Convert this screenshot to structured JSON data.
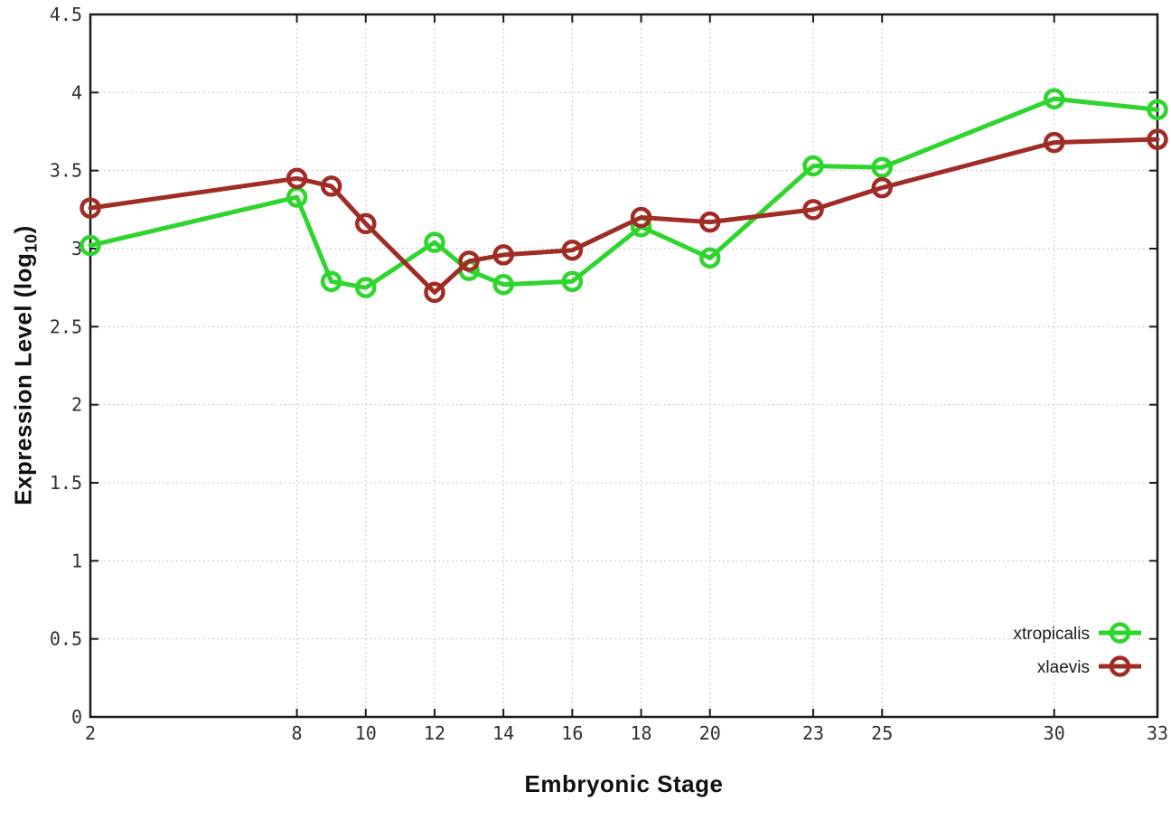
{
  "chart_data": {
    "type": "line",
    "title": "",
    "xlabel": "Embryonic Stage",
    "ylabel": "Expression Level (log10)",
    "ylabel_base": "Expression Level (log",
    "ylabel_sub": "10",
    "ylabel_close": ")",
    "x": [
      2,
      8,
      9,
      10,
      12,
      13,
      14,
      16,
      18,
      20,
      23,
      25,
      30,
      33
    ],
    "series": [
      {
        "name": "xtropicalis",
        "color": "#2dd52d",
        "marker": "open-circle",
        "values": [
          3.02,
          3.33,
          2.79,
          2.75,
          3.04,
          2.86,
          2.77,
          2.79,
          3.14,
          2.94,
          3.53,
          3.52,
          3.96,
          3.89
        ]
      },
      {
        "name": "xlaevis",
        "color": "#a02c26",
        "marker": "open-circle",
        "values": [
          3.26,
          3.45,
          3.4,
          3.16,
          2.72,
          2.92,
          2.96,
          2.99,
          3.2,
          3.17,
          3.25,
          3.39,
          3.68,
          3.7
        ]
      }
    ],
    "xticks": [
      2,
      8,
      10,
      12,
      14,
      16,
      18,
      20,
      23,
      25,
      30,
      33
    ],
    "yticks": [
      0,
      0.5,
      1,
      1.5,
      2,
      2.5,
      3,
      3.5,
      4,
      4.5
    ],
    "xlim": [
      2,
      33
    ],
    "ylim": [
      0,
      4.5
    ],
    "grid": true,
    "legend_position": "bottom-right",
    "colors": {
      "background": "#ffffff",
      "grid": "#b4b4b4",
      "axis": "#1a1a1a",
      "tick_label": "#303030",
      "legend_text": "#1a1a1a"
    }
  }
}
